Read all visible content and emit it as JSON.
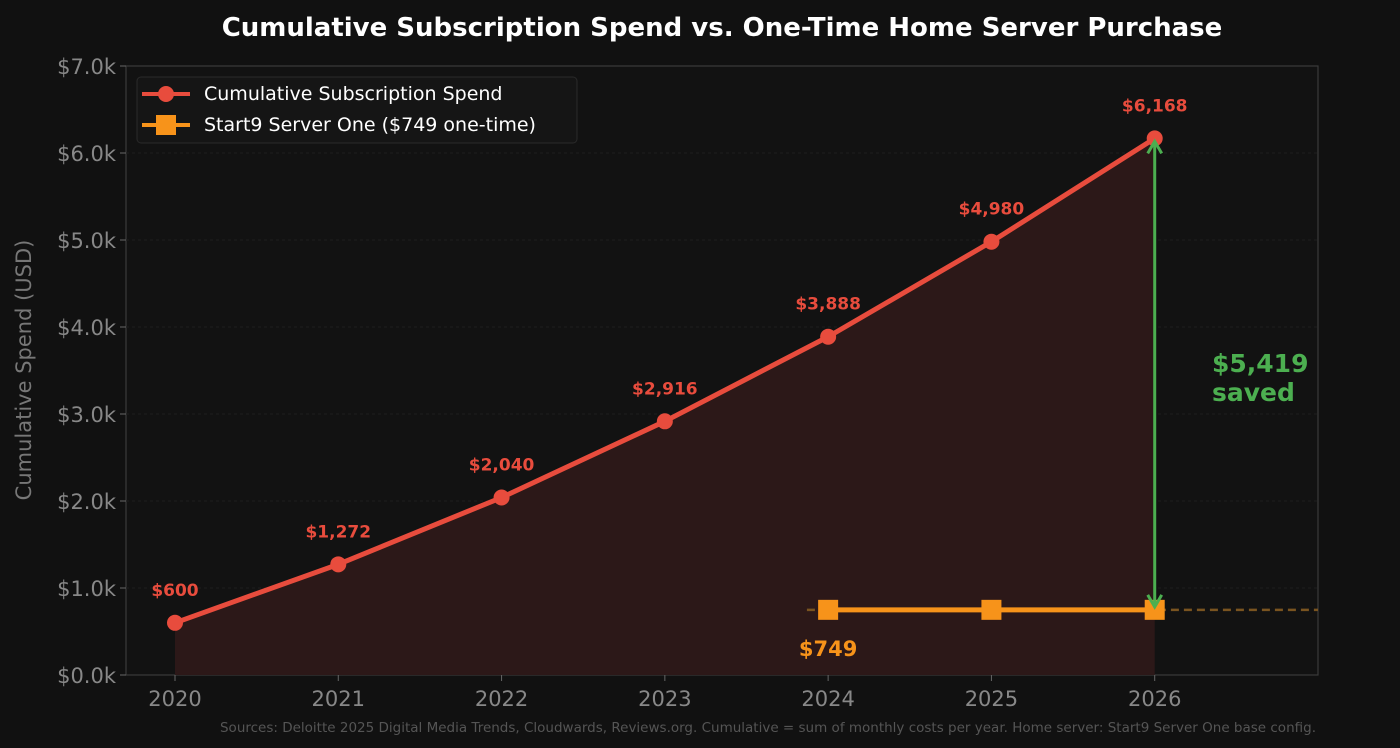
{
  "chart_data": {
    "type": "line",
    "title": "Cumulative Subscription Spend vs. One-Time Home Server Purchase",
    "xlabel": "",
    "ylabel": "Cumulative Spend (USD)",
    "x": [
      2020,
      2021,
      2022,
      2023,
      2024,
      2025,
      2026
    ],
    "xlim": [
      2019.7,
      2027
    ],
    "ylim": [
      0,
      7000
    ],
    "yticks": [
      0,
      1000,
      2000,
      3000,
      4000,
      5000,
      6000,
      7000
    ],
    "ytick_labels": [
      "$0.0k",
      "$1.0k",
      "$2.0k",
      "$3.0k",
      "$4.0k",
      "$5.0k",
      "$6.0k",
      "$7.0k"
    ],
    "xtick_labels": [
      "2020",
      "2021",
      "2022",
      "2023",
      "2024",
      "2025",
      "2026"
    ],
    "grid": true,
    "legend_position": "top-left",
    "series": [
      {
        "name": "Cumulative Subscription Spend",
        "color": "#e84c3d",
        "marker": "circle",
        "x": [
          2020,
          2021,
          2022,
          2023,
          2024,
          2025,
          2026
        ],
        "values": [
          600,
          1272,
          2040,
          2916,
          3888,
          4980,
          6168
        ],
        "data_labels": [
          "$600",
          "$1,272",
          "$2,040",
          "$2,916",
          "$3,888",
          "$4,980",
          "$6,168"
        ],
        "filled": true
      },
      {
        "name": "Start9 Server One ($749 one-time)",
        "color": "#f7931a",
        "marker": "square",
        "x": [
          2024,
          2025,
          2026
        ],
        "values": [
          749,
          749,
          749
        ],
        "data_label": "$749",
        "reference_line": 749
      }
    ],
    "annotations": [
      {
        "type": "double-arrow",
        "x": 2026,
        "from": 749,
        "to": 6168,
        "color": "#4caf50"
      },
      {
        "text_line1": "$5,419",
        "text_line2": "saved",
        "color": "#4caf50"
      }
    ],
    "source_note": "Sources: Deloitte 2025 Digital Media Trends, Cloudwards, Reviews.org. Cumulative = sum of monthly costs per year. Home server: Start9 Server One base config."
  }
}
